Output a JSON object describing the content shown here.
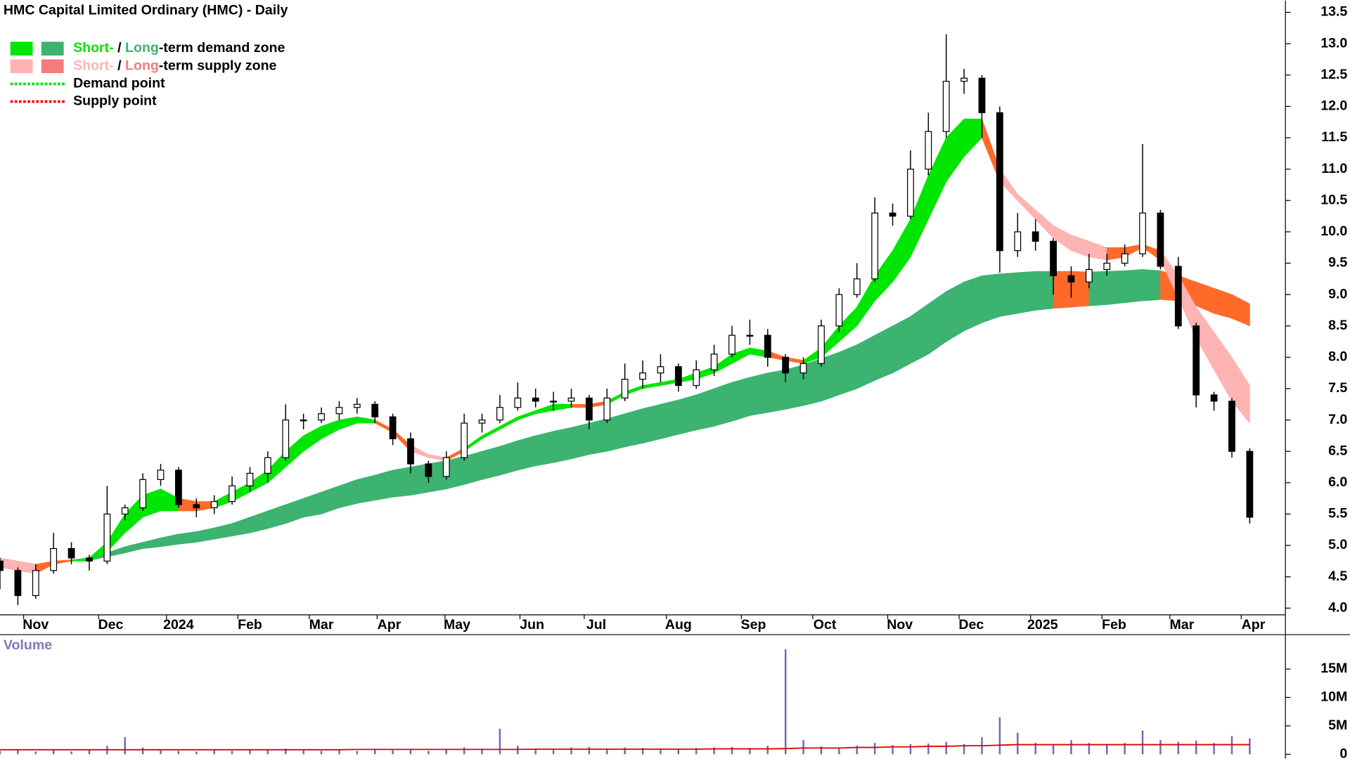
{
  "chart_data": {
    "type": "candlestick",
    "title": "HMC Capital Limited Ordinary (HMC) - Daily",
    "xlim": [
      0,
      360
    ],
    "ylim": [
      3.92,
      13.69
    ],
    "x": [
      0,
      5,
      10,
      15,
      20,
      25,
      30,
      35,
      40,
      45,
      50,
      55,
      60,
      65,
      70,
      75,
      80,
      85,
      90,
      95,
      100,
      105,
      110,
      115,
      120,
      125,
      130,
      135,
      140,
      145,
      150,
      155,
      160,
      165,
      170,
      175,
      180,
      185,
      190,
      195,
      200,
      205,
      210,
      215,
      220,
      225,
      230,
      235,
      240,
      245,
      250,
      255,
      260,
      265,
      270,
      275,
      280,
      285,
      290,
      295,
      300,
      305,
      310,
      315,
      320,
      325,
      330,
      335,
      340,
      345,
      350
    ],
    "open": [
      4.75,
      4.6,
      4.2,
      4.6,
      4.95,
      4.8,
      4.75,
      5.5,
      5.6,
      6.05,
      6.2,
      5.65,
      5.6,
      5.7,
      5.95,
      6.15,
      6.4,
      7.0,
      7.0,
      7.1,
      7.2,
      7.25,
      7.05,
      6.7,
      6.3,
      6.1,
      6.4,
      6.95,
      7.0,
      7.2,
      7.35,
      7.3,
      7.3,
      7.35,
      7.0,
      7.35,
      7.65,
      7.75,
      7.85,
      7.55,
      7.8,
      8.05,
      8.35,
      8.35,
      8.0,
      7.75,
      7.9,
      8.5,
      9.0,
      9.25,
      10.3,
      10.25,
      11.0,
      11.6,
      12.4,
      12.45,
      11.9,
      9.7,
      10.0,
      9.85,
      9.3,
      9.2,
      9.4,
      9.5,
      9.65,
      10.3,
      9.45,
      8.5,
      7.4,
      7.3,
      6.5
    ],
    "high": [
      4.8,
      4.65,
      4.7,
      5.2,
      5.05,
      4.85,
      5.95,
      5.65,
      6.15,
      6.3,
      6.25,
      5.75,
      5.8,
      6.1,
      6.25,
      6.5,
      7.25,
      7.1,
      7.2,
      7.3,
      7.35,
      7.3,
      7.1,
      6.8,
      6.35,
      6.5,
      7.1,
      7.1,
      7.4,
      7.6,
      7.5,
      7.45,
      7.5,
      7.4,
      7.5,
      7.9,
      7.95,
      8.05,
      7.9,
      7.95,
      8.2,
      8.5,
      8.6,
      8.45,
      8.05,
      8.0,
      8.6,
      9.1,
      9.5,
      10.55,
      10.45,
      11.3,
      11.9,
      13.15,
      12.6,
      12.5,
      12.0,
      10.3,
      10.2,
      9.9,
      9.45,
      9.65,
      9.65,
      9.8,
      11.4,
      10.35,
      9.6,
      8.55,
      7.45,
      7.35,
      6.55
    ],
    "low": [
      4.3,
      4.05,
      4.15,
      4.55,
      4.7,
      4.6,
      4.7,
      5.4,
      5.55,
      5.95,
      5.6,
      5.45,
      5.5,
      5.65,
      5.85,
      6.0,
      6.35,
      6.85,
      6.95,
      7.0,
      7.1,
      6.95,
      6.6,
      6.15,
      6.0,
      6.05,
      6.35,
      6.8,
      6.95,
      7.15,
      7.2,
      7.15,
      7.2,
      6.85,
      6.95,
      7.3,
      7.5,
      7.6,
      7.45,
      7.5,
      7.7,
      8.0,
      8.2,
      7.85,
      7.6,
      7.65,
      7.85,
      8.4,
      8.95,
      9.2,
      10.1,
      10.2,
      10.9,
      11.5,
      12.2,
      11.5,
      9.35,
      9.6,
      9.7,
      9.0,
      8.95,
      9.1,
      9.3,
      9.45,
      9.6,
      9.4,
      8.45,
      7.2,
      7.15,
      6.4,
      5.35
    ],
    "close": [
      4.6,
      4.2,
      4.6,
      4.95,
      4.8,
      4.75,
      5.5,
      5.6,
      6.05,
      6.2,
      5.65,
      5.6,
      5.7,
      5.95,
      6.15,
      6.4,
      7.0,
      7.0,
      7.1,
      7.2,
      7.25,
      7.05,
      6.7,
      6.3,
      6.1,
      6.4,
      6.95,
      7.0,
      7.2,
      7.35,
      7.3,
      7.3,
      7.35,
      7.0,
      7.35,
      7.65,
      7.75,
      7.85,
      7.55,
      7.8,
      8.05,
      8.35,
      8.35,
      8.0,
      7.75,
      7.9,
      8.5,
      9.0,
      9.25,
      10.3,
      10.25,
      11.0,
      11.6,
      12.4,
      12.45,
      11.9,
      9.7,
      10.0,
      9.85,
      9.3,
      9.2,
      9.4,
      9.5,
      9.65,
      10.3,
      9.45,
      8.5,
      7.4,
      7.3,
      6.5,
      5.45
    ],
    "short_term_zone": {
      "upper": [
        4.8,
        4.75,
        4.7,
        4.75,
        4.77,
        4.8,
        5.05,
        5.5,
        5.8,
        5.9,
        5.75,
        5.7,
        5.7,
        5.85,
        6.0,
        6.2,
        6.5,
        6.75,
        6.9,
        7.0,
        7.05,
        7.0,
        6.85,
        6.6,
        6.45,
        6.4,
        6.55,
        6.75,
        6.9,
        7.05,
        7.15,
        7.25,
        7.25,
        7.25,
        7.3,
        7.45,
        7.55,
        7.6,
        7.65,
        7.75,
        7.85,
        8.05,
        8.15,
        8.1,
        8.0,
        7.95,
        8.15,
        8.5,
        8.8,
        9.3,
        9.7,
        10.2,
        10.9,
        11.5,
        11.8,
        11.8,
        11.0,
        10.6,
        10.35,
        10.1,
        9.95,
        9.85,
        9.75,
        9.75,
        9.8,
        9.7,
        9.3,
        8.8,
        8.4,
        8.0,
        7.55
      ],
      "lower": [
        4.65,
        4.6,
        4.55,
        4.7,
        4.75,
        4.75,
        4.9,
        5.2,
        5.45,
        5.55,
        5.55,
        5.55,
        5.6,
        5.7,
        5.85,
        6.0,
        6.25,
        6.5,
        6.7,
        6.85,
        6.95,
        6.95,
        6.8,
        6.5,
        6.4,
        6.35,
        6.5,
        6.7,
        6.85,
        7.0,
        7.1,
        7.15,
        7.2,
        7.2,
        7.25,
        7.4,
        7.5,
        7.55,
        7.6,
        7.65,
        7.75,
        7.9,
        8.05,
        8.0,
        7.95,
        7.9,
        8.0,
        8.25,
        8.5,
        8.9,
        9.2,
        9.6,
        10.2,
        10.8,
        11.2,
        11.5,
        10.8,
        10.5,
        10.2,
        9.9,
        9.7,
        9.6,
        9.55,
        9.6,
        9.75,
        9.55,
        8.95,
        8.3,
        7.8,
        7.3,
        6.95
      ],
      "colors": [
        "#ffb3b3",
        "#ffb3b3",
        "#ff6a2a",
        "#ff6a2a",
        "#00e600",
        "#00e600",
        "#00e600",
        "#00e600",
        "#00e600",
        "#00e600",
        "#ff6a2a",
        "#ff6a2a",
        "#00e600",
        "#00e600",
        "#00e600",
        "#00e600",
        "#00e600",
        "#00e600",
        "#00e600",
        "#00e600",
        "#00e600",
        "#ff6a2a",
        "#ff6a2a",
        "#ffb3b3",
        "#ffb3b3",
        "#ff6a2a",
        "#00e600",
        "#00e600",
        "#00e600",
        "#00e600",
        "#00e600",
        "#00e600",
        "#ff6a2a",
        "#ff6a2a",
        "#00e600",
        "#00e600",
        "#00e600",
        "#00e600",
        "#00e600",
        "#00e600",
        "#00e600",
        "#00e600",
        "#00e600",
        "#ff6a2a",
        "#ff6a2a",
        "#00e600",
        "#00e600",
        "#00e600",
        "#00e600",
        "#00e600",
        "#00e600",
        "#00e600",
        "#00e600",
        "#00e600",
        "#00e600",
        "#ff6a2a",
        "#ffb3b3",
        "#ffb3b3",
        "#ffb3b3",
        "#ffb3b3",
        "#ffb3b3",
        "#ffb3b3",
        "#ff6a2a",
        "#ff6a2a",
        "#ff6a2a",
        "#ffb3b3",
        "#ffb3b3",
        "#ffb3b3",
        "#ffb3b3",
        "#ffb3b3",
        "#ffb3b3"
      ]
    },
    "long_term_zone": {
      "upper": [
        null,
        null,
        null,
        null,
        null,
        4.78,
        4.88,
        4.98,
        5.05,
        5.12,
        5.18,
        5.22,
        5.28,
        5.35,
        5.45,
        5.55,
        5.65,
        5.75,
        5.85,
        5.95,
        6.05,
        6.12,
        6.2,
        6.25,
        6.3,
        6.35,
        6.42,
        6.5,
        6.58,
        6.67,
        6.75,
        6.82,
        6.88,
        6.95,
        7.02,
        7.1,
        7.18,
        7.25,
        7.32,
        7.4,
        7.5,
        7.6,
        7.68,
        7.75,
        7.8,
        7.88,
        7.98,
        8.08,
        8.2,
        8.35,
        8.5,
        8.65,
        8.85,
        9.05,
        9.2,
        9.3,
        9.33,
        9.35,
        9.37,
        9.37,
        9.37,
        9.36,
        9.37,
        9.38,
        9.4,
        9.38,
        9.3,
        9.2,
        9.1,
        9.0,
        8.85
      ],
      "lower": [
        null,
        null,
        null,
        null,
        null,
        4.76,
        4.82,
        4.88,
        4.95,
        4.98,
        5.02,
        5.05,
        5.1,
        5.15,
        5.2,
        5.27,
        5.35,
        5.45,
        5.5,
        5.6,
        5.67,
        5.72,
        5.77,
        5.8,
        5.85,
        5.9,
        5.97,
        6.05,
        6.12,
        6.2,
        6.27,
        6.32,
        6.38,
        6.45,
        6.5,
        6.57,
        6.63,
        6.7,
        6.77,
        6.84,
        6.9,
        6.98,
        7.07,
        7.12,
        7.17,
        7.23,
        7.3,
        7.4,
        7.5,
        7.63,
        7.75,
        7.9,
        8.05,
        8.25,
        8.42,
        8.55,
        8.65,
        8.7,
        8.75,
        8.78,
        8.8,
        8.82,
        8.84,
        8.87,
        8.9,
        8.92,
        8.9,
        8.82,
        8.7,
        8.62,
        8.5
      ],
      "colors": [
        "#3cb371",
        "#3cb371",
        "#3cb371",
        "#3cb371",
        "#3cb371",
        "#3cb371",
        "#3cb371",
        "#3cb371",
        "#3cb371",
        "#3cb371",
        "#3cb371",
        "#3cb371",
        "#3cb371",
        "#3cb371",
        "#3cb371",
        "#3cb371",
        "#3cb371",
        "#3cb371",
        "#3cb371",
        "#3cb371",
        "#3cb371",
        "#3cb371",
        "#3cb371",
        "#3cb371",
        "#3cb371",
        "#3cb371",
        "#3cb371",
        "#3cb371",
        "#3cb371",
        "#3cb371",
        "#3cb371",
        "#3cb371",
        "#3cb371",
        "#3cb371",
        "#3cb371",
        "#3cb371",
        "#3cb371",
        "#3cb371",
        "#3cb371",
        "#3cb371",
        "#3cb371",
        "#3cb371",
        "#3cb371",
        "#3cb371",
        "#3cb371",
        "#3cb371",
        "#3cb371",
        "#3cb371",
        "#3cb371",
        "#3cb371",
        "#3cb371",
        "#3cb371",
        "#3cb371",
        "#3cb371",
        "#3cb371",
        "#3cb371",
        "#3cb371",
        "#3cb371",
        "#3cb371",
        "#ff6a2a",
        "#ff6a2a",
        "#3cb371",
        "#3cb371",
        "#3cb371",
        "#3cb371",
        "#ff6a2a",
        "#ff6a2a",
        "#ff6a2a",
        "#ff6a2a",
        "#ff6a2a",
        "#ff6a2a"
      ]
    },
    "yticks": [
      {
        "value": 13.5,
        "label": "13.5"
      },
      {
        "value": 13,
        "label": "13.0"
      },
      {
        "value": 12.5,
        "label": "12.5"
      },
      {
        "value": 12,
        "label": "12.0"
      },
      {
        "value": 11.5,
        "label": "11.5"
      },
      {
        "value": 11,
        "label": "11.0"
      },
      {
        "value": 10.5,
        "label": "10.5"
      },
      {
        "value": 10,
        "label": "10.0"
      },
      {
        "value": 9.5,
        "label": "9.5"
      },
      {
        "value": 9,
        "label": "9.0"
      },
      {
        "value": 8.5,
        "label": "8.5"
      },
      {
        "value": 8,
        "label": "8.0"
      },
      {
        "value": 7.5,
        "label": "7.5"
      },
      {
        "value": 7,
        "label": "7.0"
      },
      {
        "value": 6.5,
        "label": "6.5"
      },
      {
        "value": 6,
        "label": "6.0"
      },
      {
        "value": 5.5,
        "label": "5.5"
      },
      {
        "value": 5,
        "label": "5.0"
      },
      {
        "value": 4.5,
        "label": "4.5"
      },
      {
        "value": 4,
        "label": "4.0"
      }
    ],
    "xticks": [
      {
        "value": 10,
        "label": "Nov"
      },
      {
        "value": 31,
        "label": "Dec"
      },
      {
        "value": 50,
        "label": "2024"
      },
      {
        "value": 70,
        "label": "Feb"
      },
      {
        "value": 90,
        "label": "Mar"
      },
      {
        "value": 109,
        "label": "Apr"
      },
      {
        "value": 128,
        "label": "May"
      },
      {
        "value": 149,
        "label": "Jun"
      },
      {
        "value": 167,
        "label": "Jul"
      },
      {
        "value": 190,
        "label": "Aug"
      },
      {
        "value": 211,
        "label": "Sep"
      },
      {
        "value": 231,
        "label": "Oct"
      },
      {
        "value": 252,
        "label": "Nov"
      },
      {
        "value": 272,
        "label": "Dec"
      },
      {
        "value": 292,
        "label": "2025"
      },
      {
        "value": 312,
        "label": "Feb"
      },
      {
        "value": 331,
        "label": "Mar"
      },
      {
        "value": 351,
        "label": "Apr"
      }
    ],
    "legend": [
      {
        "swatches": [
          "#00e600",
          "#3cb371"
        ],
        "parts": [
          {
            "text": "Short-",
            "color": "#00e600"
          },
          {
            "text": " / ",
            "color": "#000000"
          },
          {
            "text": "Long",
            "color": "#3cb371"
          },
          {
            "text": "-term demand zone",
            "color": "#000000"
          }
        ]
      },
      {
        "swatches": [
          "#ffb3b3",
          "#f47c7c"
        ],
        "parts": [
          {
            "text": "Short-",
            "color": "#ffb3b3"
          },
          {
            "text": " / ",
            "color": "#000000"
          },
          {
            "text": "Long",
            "color": "#f47c7c"
          },
          {
            "text": "-term supply zone",
            "color": "#000000"
          }
        ]
      },
      {
        "line": "#00e600",
        "parts": [
          {
            "text": "Demand point",
            "color": "#000000"
          }
        ]
      },
      {
        "line": "#ff0000",
        "parts": [
          {
            "text": "Supply point",
            "color": "#000000"
          }
        ]
      }
    ],
    "volume": {
      "label": "Volume",
      "color": "#6a6ab8",
      "ma_color": "#e00000",
      "ylim": [
        0,
        20900000
      ],
      "yticks": [
        {
          "value": 15000000,
          "label": "15M"
        },
        {
          "value": 10000000,
          "label": "10M"
        },
        {
          "value": 5000000,
          "label": "5M"
        },
        0
      ],
      "values": [
        600000,
        700000,
        500000,
        900000,
        500000,
        700000,
        1500000,
        3000000,
        1200000,
        800000,
        600000,
        500000,
        700000,
        600000,
        900000,
        800000,
        1000000,
        700000,
        600000,
        800000,
        600000,
        900000,
        700000,
        800000,
        600000,
        900000,
        1200000,
        1000000,
        4500000,
        1500000,
        900000,
        800000,
        1200000,
        1300000,
        1000000,
        1200000,
        1100000,
        1000000,
        900000,
        1100000,
        1200000,
        1300000,
        1100000,
        1500000,
        18500000,
        2500000,
        1400000,
        1200000,
        1500000,
        2000000,
        1600000,
        1800000,
        1900000,
        2200000,
        1800000,
        3000000,
        6500000,
        3800000,
        2000000,
        1700000,
        2500000,
        2000000,
        1800000,
        2000000,
        4200000,
        2500000,
        2200000,
        2400000,
        2000000,
        3200000,
        2800000
      ],
      "ma": [
        800000,
        800000,
        800000,
        800000,
        800000,
        800000,
        800000,
        800000,
        800000,
        800000,
        800000,
        800000,
        800000,
        800000,
        800000,
        800000,
        800000,
        800000,
        800000,
        800000,
        850000,
        850000,
        850000,
        850000,
        850000,
        850000,
        850000,
        850000,
        850000,
        850000,
        900000,
        900000,
        900000,
        900000,
        900000,
        900000,
        900000,
        900000,
        900000,
        900000,
        950000,
        950000,
        950000,
        950000,
        1000000,
        1100000,
        1100000,
        1100000,
        1200000,
        1200000,
        1300000,
        1300000,
        1400000,
        1400000,
        1500000,
        1500000,
        1600000,
        1700000,
        1700000,
        1700000,
        1700000,
        1700000,
        1700000,
        1700000,
        1700000,
        1700000,
        1700000,
        1700000,
        1700000,
        1700000,
        1700000
      ]
    }
  }
}
